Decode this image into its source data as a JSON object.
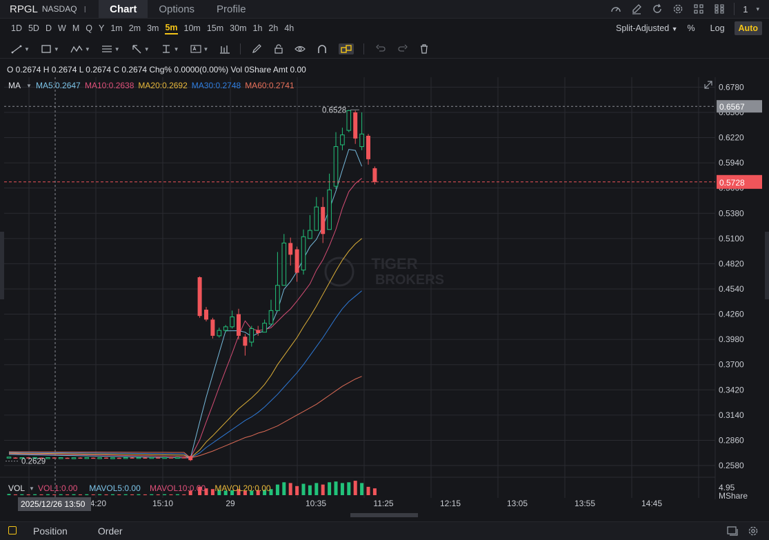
{
  "header": {
    "ticker": "RPGL",
    "exchange": "NASDAQ",
    "separator": "I",
    "tabs": [
      {
        "label": "Chart",
        "active": true
      },
      {
        "label": "Options",
        "active": false
      },
      {
        "label": "Profile",
        "active": false
      }
    ],
    "icons": [
      "gauge-icon",
      "edit-icon",
      "refresh-icon",
      "settings-icon",
      "layout-4-icon",
      "grid-6-icon"
    ],
    "layout_count": "1"
  },
  "periods": [
    "1D",
    "5D",
    "D",
    "W",
    "M",
    "Q",
    "Y",
    "1m",
    "2m",
    "3m",
    "5m",
    "10m",
    "15m",
    "30m",
    "1h",
    "2h",
    "4h"
  ],
  "active_period": "5m",
  "chart_options": {
    "adjust": "Split-Adjusted",
    "percent": "%",
    "log": "Log",
    "auto": "Auto"
  },
  "drawing_tools": [
    "line-tool-icon",
    "rectangle-tool-icon",
    "wave-tool-icon",
    "fib-tool-icon",
    "arrow-tool-icon",
    "measure-tool-icon",
    "text-tool-icon",
    "bar-tool-icon",
    "pencil-icon",
    "lock-icon",
    "eye-icon",
    "magnet-icon",
    "link-icon",
    "undo-icon",
    "redo-icon",
    "trash-icon"
  ],
  "ohlc_line": "O 0.2674 H 0.2674 L 0.2674 C 0.2674 Chg% 0.0000(0.00%) Vol 0Share Amt 0.00",
  "ma_legend": {
    "label": "MA",
    "items": [
      {
        "text": "MA5:0.2647",
        "color": "#7cc4e8"
      },
      {
        "text": "MA10:0.2638",
        "color": "#e0507a"
      },
      {
        "text": "MA20:0.2692",
        "color": "#e8b83a"
      },
      {
        "text": "MA30:0.2748",
        "color": "#2f7ee0"
      },
      {
        "text": "MA60:0.2741",
        "color": "#e8705a"
      }
    ]
  },
  "vol_legend": {
    "label": "VOL",
    "items": [
      {
        "text": "VOL1:0.00",
        "color": "#e0507a"
      },
      {
        "text": "MAVOL5:0.00",
        "color": "#7cc4e8"
      },
      {
        "text": "MAVOL10:0.00",
        "color": "#e0507a"
      },
      {
        "text": "MAVOL20:0.00",
        "color": "#e8b83a"
      }
    ],
    "axis_value": "4.95",
    "axis_unit": "MShare"
  },
  "watermark": [
    "TIGER",
    "BROKERS"
  ],
  "colors": {
    "up": "#22c27a",
    "down": "#f0555a"
  },
  "chart_data": {
    "type": "candlestick",
    "price_axis_ticks": [
      "0.6780",
      "0.6500",
      "0.6220",
      "0.5940",
      "0.5660",
      "0.5380",
      "0.5100",
      "0.4820",
      "0.4540",
      "0.4260",
      "0.3980",
      "0.3700",
      "0.3420",
      "0.3140",
      "0.2860",
      "0.2580"
    ],
    "ylim": [
      0.245,
      0.689
    ],
    "time_axis_labels": [
      "14:20",
      "15:10",
      "29",
      "10:35",
      "11:25",
      "12:15",
      "13:05",
      "13:55",
      "14:45"
    ],
    "crosshair_time": "2025/12/26 13:50",
    "last_price": "0.5728",
    "high_marker": "0.6567",
    "max_label": "0.6528",
    "min_label": "0.2629",
    "candles_open_close": [
      [
        0.2674,
        0.2674
      ],
      [
        0.2668,
        0.2662
      ],
      [
        0.2665,
        0.2668
      ],
      [
        0.267,
        0.2664
      ],
      [
        0.2663,
        0.2669
      ],
      [
        0.2667,
        0.2663
      ],
      [
        0.2664,
        0.2668
      ],
      [
        0.2669,
        0.2665
      ],
      [
        0.2662,
        0.2668
      ],
      [
        0.2666,
        0.2662
      ],
      [
        0.2663,
        0.2667
      ],
      [
        0.2668,
        0.2664
      ],
      [
        0.2665,
        0.2669
      ],
      [
        0.2667,
        0.2663
      ],
      [
        0.2664,
        0.2668
      ],
      [
        0.2668,
        0.2664
      ],
      [
        0.2663,
        0.2667
      ],
      [
        0.2666,
        0.2662
      ],
      [
        0.2664,
        0.2669
      ],
      [
        0.2669,
        0.2664
      ],
      [
        0.2665,
        0.267
      ],
      [
        0.2668,
        0.2664
      ],
      [
        0.2665,
        0.267
      ],
      [
        0.2669,
        0.2665
      ],
      [
        0.2666,
        0.267
      ],
      [
        0.267,
        0.2667
      ],
      [
        0.2668,
        0.2671
      ],
      [
        0.2671,
        0.2668
      ],
      [
        0.2685,
        0.264
      ],
      [
        0.467,
        0.424
      ],
      [
        0.431,
        0.42
      ],
      [
        0.42,
        0.402
      ],
      [
        0.402,
        0.408
      ],
      [
        0.408,
        0.412
      ],
      [
        0.412,
        0.423
      ],
      [
        0.426,
        0.402
      ],
      [
        0.401,
        0.391
      ],
      [
        0.395,
        0.41
      ],
      [
        0.408,
        0.405
      ],
      [
        0.406,
        0.416
      ],
      [
        0.415,
        0.43
      ],
      [
        0.43,
        0.458
      ],
      [
        0.458,
        0.505
      ],
      [
        0.505,
        0.492
      ],
      [
        0.498,
        0.472
      ],
      [
        0.475,
        0.512
      ],
      [
        0.51,
        0.519
      ],
      [
        0.519,
        0.545
      ],
      [
        0.545,
        0.515
      ],
      [
        0.52,
        0.564
      ],
      [
        0.568,
        0.612
      ],
      [
        0.614,
        0.625
      ],
      [
        0.63,
        0.652
      ],
      [
        0.65,
        0.621
      ],
      [
        0.612,
        0.626
      ],
      [
        0.624,
        0.598
      ],
      [
        0.588,
        0.5728
      ]
    ],
    "candles_high_low": [
      [
        0.2674,
        0.2674
      ],
      [
        0.2672,
        0.2659
      ],
      [
        0.2671,
        0.2662
      ],
      [
        0.2673,
        0.266
      ],
      [
        0.2672,
        0.266
      ],
      [
        0.267,
        0.266
      ],
      [
        0.2671,
        0.2661
      ],
      [
        0.2672,
        0.2662
      ],
      [
        0.2671,
        0.2659
      ],
      [
        0.2669,
        0.2659
      ],
      [
        0.267,
        0.266
      ],
      [
        0.2671,
        0.2661
      ],
      [
        0.2672,
        0.2662
      ],
      [
        0.267,
        0.266
      ],
      [
        0.2671,
        0.2661
      ],
      [
        0.2671,
        0.2661
      ],
      [
        0.267,
        0.266
      ],
      [
        0.2669,
        0.2659
      ],
      [
        0.2672,
        0.2661
      ],
      [
        0.2672,
        0.2661
      ],
      [
        0.2673,
        0.2662
      ],
      [
        0.2671,
        0.2661
      ],
      [
        0.2673,
        0.2662
      ],
      [
        0.2672,
        0.2662
      ],
      [
        0.2673,
        0.2663
      ],
      [
        0.2673,
        0.2664
      ],
      [
        0.2674,
        0.2665
      ],
      [
        0.2674,
        0.2665
      ],
      [
        0.269,
        0.2629
      ],
      [
        0.468,
        0.422
      ],
      [
        0.434,
        0.418
      ],
      [
        0.422,
        0.399
      ],
      [
        0.411,
        0.4
      ],
      [
        0.414,
        0.406
      ],
      [
        0.43,
        0.41
      ],
      [
        0.432,
        0.398
      ],
      [
        0.404,
        0.38
      ],
      [
        0.413,
        0.39
      ],
      [
        0.413,
        0.402
      ],
      [
        0.42,
        0.41
      ],
      [
        0.442,
        0.428
      ],
      [
        0.495,
        0.448
      ],
      [
        0.515,
        0.495
      ],
      [
        0.511,
        0.48
      ],
      [
        0.501,
        0.462
      ],
      [
        0.52,
        0.47
      ],
      [
        0.536,
        0.51
      ],
      [
        0.556,
        0.535
      ],
      [
        0.556,
        0.505
      ],
      [
        0.582,
        0.53
      ],
      [
        0.628,
        0.565
      ],
      [
        0.633,
        0.608
      ],
      [
        0.6528,
        0.628
      ],
      [
        0.652,
        0.615
      ],
      [
        0.65,
        0.608
      ],
      [
        0.626,
        0.592
      ],
      [
        0.59,
        0.57
      ]
    ],
    "ma_series": [
      {
        "name": "MA5",
        "start_index": 28,
        "values": [
          0.2664,
          0.3065,
          0.3339,
          0.3587,
          0.3832,
          0.4075,
          0.4076,
          0.4077,
          0.406,
          0.4012,
          0.405,
          0.4076,
          0.4134,
          0.4302,
          0.4537,
          0.4622,
          0.4734,
          0.4873,
          0.5009,
          0.509,
          0.5236,
          0.5425,
          0.5626,
          0.5862,
          0.6089,
          0.6078,
          0.5901
        ]
      },
      {
        "name": "MA10",
        "start_index": 28,
        "values": [
          0.2665,
          0.2866,
          0.3063,
          0.3253,
          0.3451,
          0.364,
          0.3827,
          0.4023,
          0.4185,
          0.4095,
          0.408,
          0.4088,
          0.411,
          0.4181,
          0.4253,
          0.4318,
          0.4405,
          0.4499,
          0.4596,
          0.4748,
          0.4864,
          0.502,
          0.5201,
          0.5437,
          0.562,
          0.571,
          0.5768
        ]
      },
      {
        "name": "MA20",
        "start_index": 28,
        "values": [
          0.2665,
          0.2753,
          0.2842,
          0.291,
          0.2985,
          0.306,
          0.3135,
          0.321,
          0.327,
          0.333,
          0.34,
          0.348,
          0.358,
          0.37,
          0.38,
          0.39,
          0.4,
          0.412,
          0.423,
          0.435,
          0.448,
          0.461,
          0.474,
          0.486,
          0.496,
          0.504,
          0.51
        ]
      },
      {
        "name": "MA30",
        "start_index": 28,
        "values": [
          0.2665,
          0.272,
          0.278,
          0.283,
          0.288,
          0.293,
          0.298,
          0.303,
          0.308,
          0.312,
          0.317,
          0.323,
          0.33,
          0.337,
          0.345,
          0.353,
          0.361,
          0.37,
          0.38,
          0.39,
          0.4,
          0.411,
          0.422,
          0.432,
          0.44,
          0.446,
          0.452
        ]
      },
      {
        "name": "MA60",
        "start_index": 28,
        "values": [
          0.2665,
          0.269,
          0.2715,
          0.274,
          0.277,
          0.28,
          0.283,
          0.286,
          0.289,
          0.291,
          0.294,
          0.296,
          0.299,
          0.302,
          0.306,
          0.31,
          0.314,
          0.318,
          0.322,
          0.326,
          0.331,
          0.336,
          0.341,
          0.346,
          0.35,
          0.354,
          0.357
        ]
      }
    ],
    "volume_relative": [
      0.08,
      0.05,
      0.06,
      0.05,
      0.06,
      0.05,
      0.06,
      0.05,
      0.06,
      0.05,
      0.06,
      0.05,
      0.06,
      0.05,
      0.06,
      0.05,
      0.06,
      0.05,
      0.06,
      0.05,
      0.06,
      0.05,
      0.06,
      0.05,
      0.06,
      0.05,
      0.06,
      0.05,
      0.3,
      0.55,
      0.45,
      0.4,
      0.35,
      0.3,
      0.32,
      0.4,
      0.28,
      0.3,
      0.33,
      0.35,
      0.4,
      0.7,
      0.85,
      0.8,
      0.6,
      0.75,
      0.65,
      0.8,
      0.7,
      0.85,
      0.9,
      0.8,
      0.85,
      0.95,
      0.8,
      0.55,
      0.45
    ]
  }
}
